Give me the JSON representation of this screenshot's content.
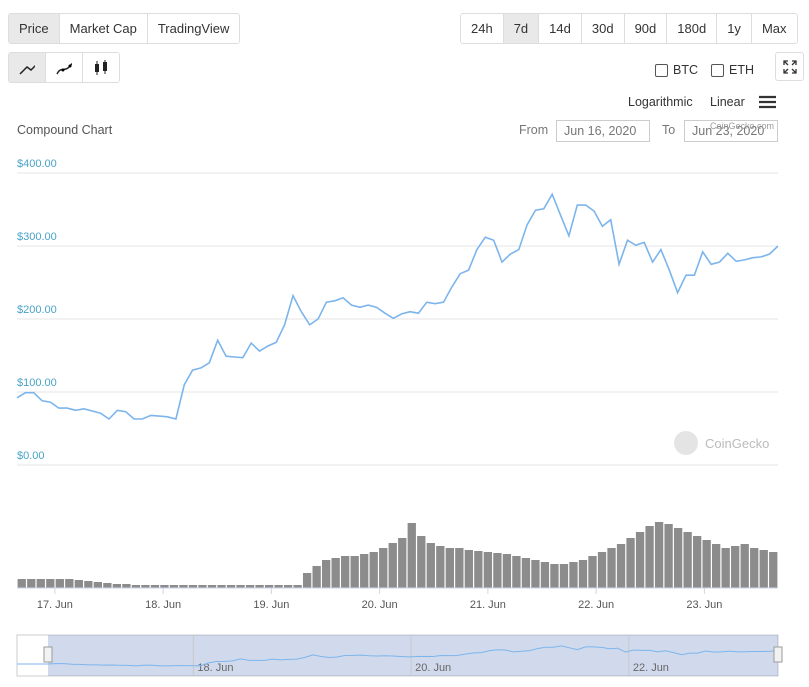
{
  "tabs": [
    "Price",
    "Market Cap",
    "TradingView"
  ],
  "active_tab": 0,
  "ranges": [
    "24h",
    "7d",
    "14d",
    "30d",
    "90d",
    "180d",
    "1y",
    "Max"
  ],
  "active_range": 1,
  "compare": [
    "BTC",
    "ETH"
  ],
  "scales": [
    "Logarithmic",
    "Linear"
  ],
  "chart_data": {
    "type": "line",
    "title": "Compound Chart",
    "from_label": "From",
    "from": "Jun 16, 2020",
    "to_label": "To",
    "to": "Jun 23, 2020",
    "watermark": "CoinGecko",
    "watermark_small": "CoinGecko.com",
    "color": "#7cb5ec",
    "ylim": [
      0,
      400
    ],
    "yticks": [
      {
        "value": 0,
        "label": "$0.00"
      },
      {
        "value": 100,
        "label": "$100.00"
      },
      {
        "value": 200,
        "label": "$200.00"
      },
      {
        "value": 300,
        "label": "$300.00"
      },
      {
        "value": 400,
        "label": "$400.00"
      }
    ],
    "xlim": [
      16.65,
      23.68
    ],
    "xticks": [
      {
        "value": 17,
        "label": "17. Jun"
      },
      {
        "value": 18,
        "label": "18. Jun"
      },
      {
        "value": 19,
        "label": "19. Jun"
      },
      {
        "value": 20,
        "label": "20. Jun"
      },
      {
        "value": 21,
        "label": "21. Jun"
      },
      {
        "value": 22,
        "label": "22. Jun"
      },
      {
        "value": 23,
        "label": "23. Jun"
      }
    ],
    "values": [
      92,
      99,
      99,
      88,
      86,
      78,
      78,
      75,
      77,
      74,
      71,
      63,
      75,
      73,
      63,
      63,
      68,
      67,
      66,
      63,
      110,
      130,
      133,
      140,
      171,
      149,
      148,
      147,
      167,
      156,
      163,
      168,
      192,
      232,
      210,
      192,
      200,
      223,
      225,
      229,
      219,
      216,
      219,
      216,
      208,
      201,
      207,
      210,
      208,
      223,
      221,
      223,
      244,
      262,
      267,
      295,
      312,
      308,
      278,
      289,
      295,
      329,
      349,
      351,
      371,
      342,
      314,
      356,
      356,
      348,
      327,
      336,
      275,
      308,
      301,
      305,
      278,
      295,
      267,
      236,
      260,
      260,
      292,
      275,
      278,
      290,
      279,
      281,
      284,
      285,
      289,
      300
    ],
    "volume": {
      "color": "#8c8c8c",
      "values": [
        9,
        9,
        9,
        9,
        9,
        9,
        8,
        7,
        6,
        5,
        4,
        4,
        3,
        3,
        3,
        3,
        3,
        3,
        3,
        3,
        3,
        3,
        3,
        3,
        3,
        3,
        3,
        3,
        3,
        3,
        15,
        22,
        28,
        30,
        32,
        32,
        34,
        36,
        40,
        45,
        50,
        65,
        52,
        45,
        42,
        40,
        40,
        38,
        37,
        36,
        35,
        34,
        32,
        30,
        28,
        26,
        24,
        24,
        26,
        28,
        32,
        36,
        40,
        44,
        50,
        56,
        62,
        66,
        64,
        60,
        56,
        52,
        48,
        44,
        40,
        42,
        44,
        40,
        38,
        36
      ]
    },
    "navigator": {
      "xlim": [
        16.38,
        23.37
      ],
      "xticks": [
        {
          "value": 18,
          "label": "18. Jun"
        },
        {
          "value": 20,
          "label": "20. Jun"
        },
        {
          "value": 22,
          "label": "22. Jun"
        }
      ]
    }
  }
}
